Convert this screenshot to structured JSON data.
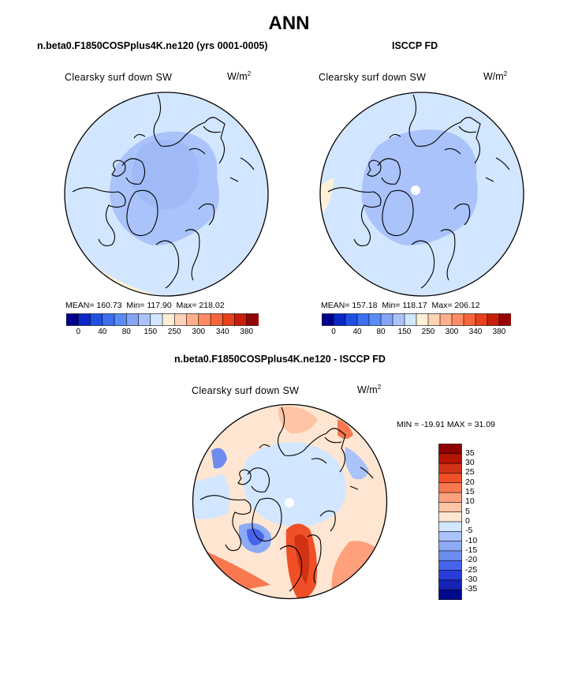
{
  "title": "ANN",
  "panels": [
    {
      "case_title": "n.beta0.F1850COSPplus4K.ne120 (yrs 0001-0005)",
      "variable": "Clearsky surf down SW",
      "units_base": "W/m",
      "units_exp": "2",
      "mean_label": "MEAN=",
      "mean_value": "160.73",
      "min_label": "Min=",
      "min_value": "117.90",
      "max_label": "Max=",
      "max_value": "218.02"
    },
    {
      "case_title": "ISCCP FD",
      "variable": "Clearsky surf down SW",
      "units_base": "W/m",
      "units_exp": "2",
      "mean_label": "MEAN=",
      "mean_value": "157.18",
      "min_label": "Min=",
      "min_value": "118.17",
      "max_label": "Max=",
      "max_value": "206.12"
    }
  ],
  "diff": {
    "case_title": "n.beta0.F1850COSPplus4K.ne120 - ISCCP FD",
    "variable": "Clearsky surf down SW",
    "units_base": "W/m",
    "units_exp": "2",
    "minmax_text": "MIN = -19.91  MAX =   31.09"
  },
  "chart_data": [
    {
      "type": "heatmap",
      "projection": "polar-stereographic-north",
      "title": "Clearsky surf down SW",
      "subtitle": "n.beta0.F1850COSPplus4K.ne120 (yrs 0001-0005)",
      "units": "W/m2",
      "stats": {
        "mean": 160.73,
        "min": 117.9,
        "max": 218.02
      },
      "colorbar_ticks": [
        "0",
        "40",
        "80",
        "150",
        "250",
        "300",
        "340",
        "380"
      ],
      "colorbar_colors": [
        "#00008c",
        "#0a28c8",
        "#1e50e6",
        "#3c6ef0",
        "#5a8cf5",
        "#82a5f5",
        "#aac3fa",
        "#d2e6ff",
        "#fff0d7",
        "#ffd2b4",
        "#ffaf8c",
        "#ff8c64",
        "#fa643c",
        "#e64119",
        "#c81e0a",
        "#960505"
      ]
    },
    {
      "type": "heatmap",
      "projection": "polar-stereographic-north",
      "title": "Clearsky surf down SW",
      "subtitle": "ISCCP FD",
      "units": "W/m2",
      "stats": {
        "mean": 157.18,
        "min": 118.17,
        "max": 206.12
      },
      "colorbar_ticks": [
        "0",
        "40",
        "80",
        "150",
        "250",
        "300",
        "340",
        "380"
      ],
      "colorbar_colors": [
        "#00008c",
        "#0a28c8",
        "#1e50e6",
        "#3c6ef0",
        "#5a8cf5",
        "#82a5f5",
        "#aac3fa",
        "#d2e6ff",
        "#fff0d7",
        "#ffd2b4",
        "#ffaf8c",
        "#ff8c64",
        "#fa643c",
        "#e64119",
        "#c81e0a",
        "#960505"
      ]
    },
    {
      "type": "heatmap",
      "projection": "polar-stereographic-north",
      "title": "Clearsky surf down SW",
      "subtitle": "n.beta0.F1850COSPplus4K.ne120 - ISCCP FD",
      "units": "W/m2",
      "stats": {
        "min": -19.91,
        "max": 31.09
      },
      "colorbar_ticks": [
        "35",
        "30",
        "25",
        "20",
        "15",
        "10",
        "5",
        "0",
        "-5",
        "-10",
        "-15",
        "-20",
        "-25",
        "-30",
        "-35"
      ],
      "colorbar_colors": [
        "#8c0000",
        "#b41400",
        "#d23214",
        "#f05028",
        "#fa7850",
        "#ffa07d",
        "#ffc3a5",
        "#ffe6d2",
        "#d2e6ff",
        "#aac3fa",
        "#8caaf5",
        "#6e8cf0",
        "#4664eb",
        "#283cd7",
        "#1423b4",
        "#000a8c"
      ]
    }
  ]
}
